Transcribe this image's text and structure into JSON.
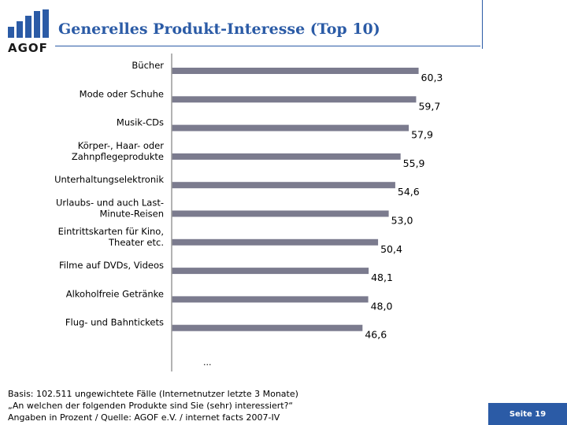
{
  "logo": {
    "text": "AGOF",
    "color": "#2b5ba6"
  },
  "header": {
    "title": "Generelles Produkt-Interesse (Top 10)"
  },
  "chart_data": {
    "type": "bar",
    "orientation": "horizontal",
    "categories": [
      "Bücher",
      "Mode oder Schuhe",
      "Musik-CDs",
      "Körper-, Haar- oder\nZahnpflegeprodukte",
      "Unterhaltungselektronik",
      "Urlaubs- und auch Last-\nMinute-Reisen",
      "Eintrittskarten für Kino,\nTheater etc.",
      "Filme auf DVDs, Videos",
      "Alkoholfreie Getränke",
      "Flug- und Bahntickets"
    ],
    "values": [
      60.3,
      59.7,
      57.9,
      55.9,
      54.6,
      53.0,
      50.4,
      48.1,
      48.0,
      46.6
    ],
    "value_labels": [
      "60,3",
      "59,7",
      "57,9",
      "55,9",
      "54,6",
      "53,0",
      "50,4",
      "48,1",
      "48,0",
      "46,6"
    ],
    "bar_color": "#7b7b8e",
    "continuation": "...",
    "grid": false,
    "legend": "none"
  },
  "footer": {
    "lines": [
      "Basis: 102.511 ungewichtete Fälle (Internetnutzer letzte 3 Monate)",
      "„An welchen der folgenden Produkte sind Sie (sehr) interessiert?“",
      "Angaben in Prozent / Quelle: AGOF e.V. / internet facts 2007-IV"
    ],
    "page_label": "Seite 19"
  }
}
